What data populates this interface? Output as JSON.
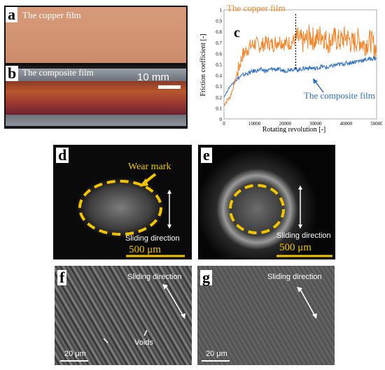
{
  "panel_a": {
    "label": "a",
    "caption": "The copper film"
  },
  "panel_b": {
    "label": "b",
    "caption": "The composite film",
    "scale_bar": "10 mm"
  },
  "panel_c": {
    "label": "c"
  },
  "panel_d": {
    "label": "d",
    "wear_mark": "Wear mark",
    "direction": "Sliding direction",
    "scale": "500 μm"
  },
  "panel_e": {
    "label": "e",
    "direction": "Sliding direction",
    "scale": "500 μm"
  },
  "panel_f": {
    "label": "f",
    "direction": "Sliding direction",
    "voids": "Voids",
    "scale": "20 μm"
  },
  "panel_g": {
    "label": "g",
    "direction": "Sliding direction",
    "scale": "20 μm"
  },
  "colors": {
    "copper": "#f0862b",
    "composite": "#2f6fc0",
    "annotation": "#f2c400"
  },
  "chart_data": {
    "type": "line",
    "xlabel": "Rotating revolution [-]",
    "ylabel": "Friction coefficient [-]",
    "xlim": [
      0,
      50000
    ],
    "ylim": [
      0,
      1.0
    ],
    "xticks": [
      "0",
      "10000",
      "20000",
      "30000",
      "40000",
      "50000"
    ],
    "yticks": [
      "0",
      "0.1",
      "0.2",
      "0.3",
      "0.4",
      "0.5",
      "0.6",
      "0.7",
      "0.8",
      "0.9",
      "1"
    ],
    "marker_x": 23500,
    "series": [
      {
        "name": "The copper film",
        "color": "#f0862b",
        "x": [
          0,
          2000,
          4000,
          6000,
          8000,
          10000,
          12000,
          14000,
          16000,
          18000,
          20000,
          22000,
          24000,
          26000,
          28000,
          30000,
          32000,
          34000,
          36000,
          38000,
          40000,
          42000,
          44000,
          46000,
          48000,
          50000
        ],
        "y": [
          0.13,
          0.2,
          0.38,
          0.58,
          0.65,
          0.69,
          0.67,
          0.7,
          0.68,
          0.72,
          0.69,
          0.7,
          0.74,
          0.7,
          0.76,
          0.72,
          0.78,
          0.7,
          0.74,
          0.71,
          0.76,
          0.69,
          0.73,
          0.68,
          0.72,
          0.63
        ]
      },
      {
        "name": "The composite film",
        "color": "#2f6fc0",
        "x": [
          0,
          2000,
          4000,
          6000,
          8000,
          10000,
          12000,
          14000,
          16000,
          18000,
          20000,
          22000,
          24000,
          26000,
          28000,
          30000,
          32000,
          34000,
          36000,
          38000,
          40000,
          42000,
          44000,
          46000,
          48000,
          50000
        ],
        "y": [
          0.2,
          0.3,
          0.36,
          0.4,
          0.42,
          0.44,
          0.45,
          0.44,
          0.46,
          0.45,
          0.44,
          0.46,
          0.45,
          0.46,
          0.47,
          0.46,
          0.48,
          0.47,
          0.49,
          0.5,
          0.51,
          0.52,
          0.53,
          0.54,
          0.55,
          0.56
        ]
      }
    ]
  }
}
